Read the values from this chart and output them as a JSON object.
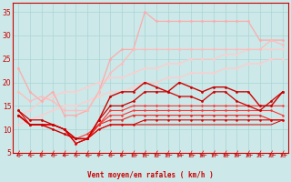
{
  "x": [
    0,
    1,
    2,
    3,
    4,
    5,
    6,
    7,
    8,
    9,
    10,
    11,
    12,
    13,
    14,
    15,
    16,
    17,
    18,
    19,
    20,
    21,
    22,
    23
  ],
  "lines": [
    {
      "y": [
        23,
        18,
        16,
        18,
        13,
        13,
        14,
        18,
        25,
        27,
        27,
        35,
        33,
        33,
        33,
        33,
        33,
        33,
        33,
        33,
        33,
        29,
        29,
        29
      ],
      "color": "#ffaaaa",
      "lw": 0.9,
      "marker": "o",
      "ms": 2.0,
      "zorder": 3
    },
    {
      "y": [
        18,
        16,
        17,
        16,
        14,
        14,
        14,
        18,
        22,
        24,
        27,
        27,
        27,
        27,
        27,
        27,
        27,
        27,
        27,
        27,
        27,
        27,
        29,
        28
      ],
      "color": "#ffbbbb",
      "lw": 0.9,
      "marker": "o",
      "ms": 2.0,
      "zorder": 3
    },
    {
      "y": [
        13,
        14,
        16,
        17,
        18,
        18,
        19,
        20,
        21,
        21,
        22,
        23,
        23,
        24,
        24,
        25,
        25,
        25,
        26,
        26,
        27,
        27,
        27,
        27
      ],
      "color": "#ffcccc",
      "lw": 0.9,
      "marker": "o",
      "ms": 2.0,
      "zorder": 2
    },
    {
      "y": [
        11,
        12,
        13,
        14,
        15,
        15,
        16,
        17,
        18,
        18,
        19,
        20,
        20,
        21,
        21,
        22,
        22,
        22,
        23,
        23,
        24,
        24,
        25,
        25
      ],
      "color": "#ffcccc",
      "lw": 0.9,
      "marker": "o",
      "ms": 2.0,
      "zorder": 2
    },
    {
      "y": [
        13,
        11,
        11,
        10,
        9,
        8,
        8,
        12,
        17,
        18,
        18,
        20,
        19,
        18,
        20,
        19,
        18,
        19,
        19,
        18,
        18,
        15,
        15,
        18
      ],
      "color": "#cc0000",
      "lw": 1.0,
      "marker": "o",
      "ms": 2.0,
      "zorder": 4
    },
    {
      "y": [
        14,
        12,
        12,
        11,
        10,
        8,
        8,
        12,
        15,
        15,
        16,
        18,
        18,
        18,
        17,
        17,
        16,
        18,
        18,
        16,
        15,
        14,
        16,
        18
      ],
      "color": "#cc0000",
      "lw": 0.9,
      "marker": "o",
      "ms": 2.0,
      "zorder": 4
    },
    {
      "y": [
        13,
        11,
        11,
        11,
        10,
        8,
        9,
        11,
        14,
        14,
        15,
        15,
        15,
        15,
        15,
        15,
        15,
        15,
        15,
        15,
        15,
        15,
        15,
        15
      ],
      "color": "#ff3333",
      "lw": 0.8,
      "marker": "o",
      "ms": 1.8,
      "zorder": 3
    },
    {
      "y": [
        13,
        11,
        11,
        11,
        10,
        8,
        8,
        11,
        13,
        13,
        14,
        14,
        14,
        14,
        14,
        14,
        14,
        14,
        14,
        14,
        14,
        14,
        14,
        13
      ],
      "color": "#ff3333",
      "lw": 0.8,
      "marker": "o",
      "ms": 1.8,
      "zorder": 3
    },
    {
      "y": [
        13,
        11,
        11,
        11,
        10,
        7,
        8,
        11,
        12,
        12,
        13,
        13,
        13,
        13,
        13,
        13,
        13,
        13,
        13,
        13,
        13,
        13,
        12,
        12
      ],
      "color": "#ee2222",
      "lw": 0.8,
      "marker": "o",
      "ms": 1.8,
      "zorder": 3
    },
    {
      "y": [
        14,
        11,
        11,
        11,
        10,
        7,
        8,
        10,
        11,
        11,
        11,
        12,
        12,
        12,
        12,
        12,
        12,
        12,
        12,
        12,
        12,
        12,
        12,
        12
      ],
      "color": "#dd0000",
      "lw": 0.8,
      "marker": "o",
      "ms": 1.8,
      "zorder": 3
    },
    {
      "y": [
        13,
        11,
        11,
        11,
        10,
        7,
        8,
        10,
        11,
        11,
        11,
        11,
        11,
        11,
        11,
        11,
        11,
        11,
        11,
        11,
        11,
        11,
        11,
        12
      ],
      "color": "#cc0000",
      "lw": 0.7,
      "marker": null,
      "ms": 0,
      "zorder": 2
    }
  ],
  "ylim": [
    5,
    37
  ],
  "yticks": [
    5,
    10,
    15,
    20,
    25,
    30,
    35
  ],
  "xticks": [
    0,
    1,
    2,
    3,
    4,
    5,
    6,
    7,
    8,
    9,
    10,
    11,
    12,
    13,
    14,
    15,
    16,
    17,
    18,
    19,
    20,
    21,
    22,
    23
  ],
  "xlabel": "Vent moyen/en rafales ( km/h )",
  "bg_color": "#cce8e8",
  "grid_color": "#aad4d4",
  "axis_color": "#cc0000",
  "tick_color": "#cc0000",
  "label_color": "#cc0000",
  "arrow_color": "#dd0000"
}
